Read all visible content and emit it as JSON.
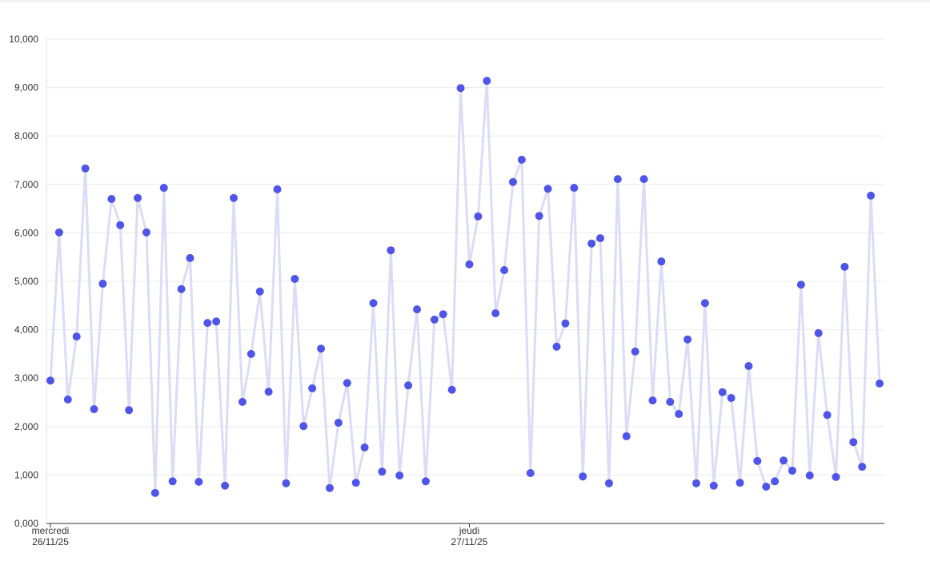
{
  "chart_data": {
    "type": "line",
    "title": "",
    "xlabel": "",
    "ylabel": "",
    "ylim": [
      0,
      10000
    ],
    "y_ticks": [
      "0,000",
      "1,000",
      "2,000",
      "3,000",
      "4,000",
      "5,000",
      "6,000",
      "7,000",
      "8,000",
      "9,000",
      "10,000"
    ],
    "grid": true,
    "x_ticks": [
      {
        "label": "mercredi",
        "sublabel": "26/11/25",
        "index": 0
      },
      {
        "label": "jeudi",
        "sublabel": "27/11/25",
        "index": 48
      }
    ],
    "series": [
      {
        "values": [
          2950,
          6010,
          2560,
          3860,
          7330,
          2360,
          4950,
          6700,
          6160,
          2340,
          6720,
          6010,
          630,
          6930,
          870,
          4840,
          5480,
          860,
          4140,
          4170,
          780,
          6720,
          2510,
          3500,
          4790,
          2720,
          6900,
          830,
          5050,
          2010,
          2790,
          3610,
          730,
          2080,
          2900,
          840,
          1570,
          4550,
          1070,
          5640,
          990,
          2850,
          4420,
          870,
          4210,
          4320,
          2760,
          8990,
          5350,
          6340,
          9140,
          4340,
          5230,
          7050,
          7510,
          1040,
          6350,
          6910,
          3650,
          4130,
          6930,
          970,
          5780,
          5890,
          830,
          7110,
          1800,
          3550,
          7110,
          2540,
          5410,
          2510,
          2260,
          3800,
          830,
          4550,
          780,
          2710,
          2590,
          840,
          3250,
          1290,
          760,
          870,
          1300,
          1090,
          4930,
          990,
          3930,
          2240,
          960,
          5300,
          1680,
          1170,
          6770,
          2890
        ]
      }
    ],
    "colors": {
      "line": "#dcdcf7",
      "point": "#4f55e8",
      "grid": "#ececef",
      "axis": "#333333"
    }
  }
}
